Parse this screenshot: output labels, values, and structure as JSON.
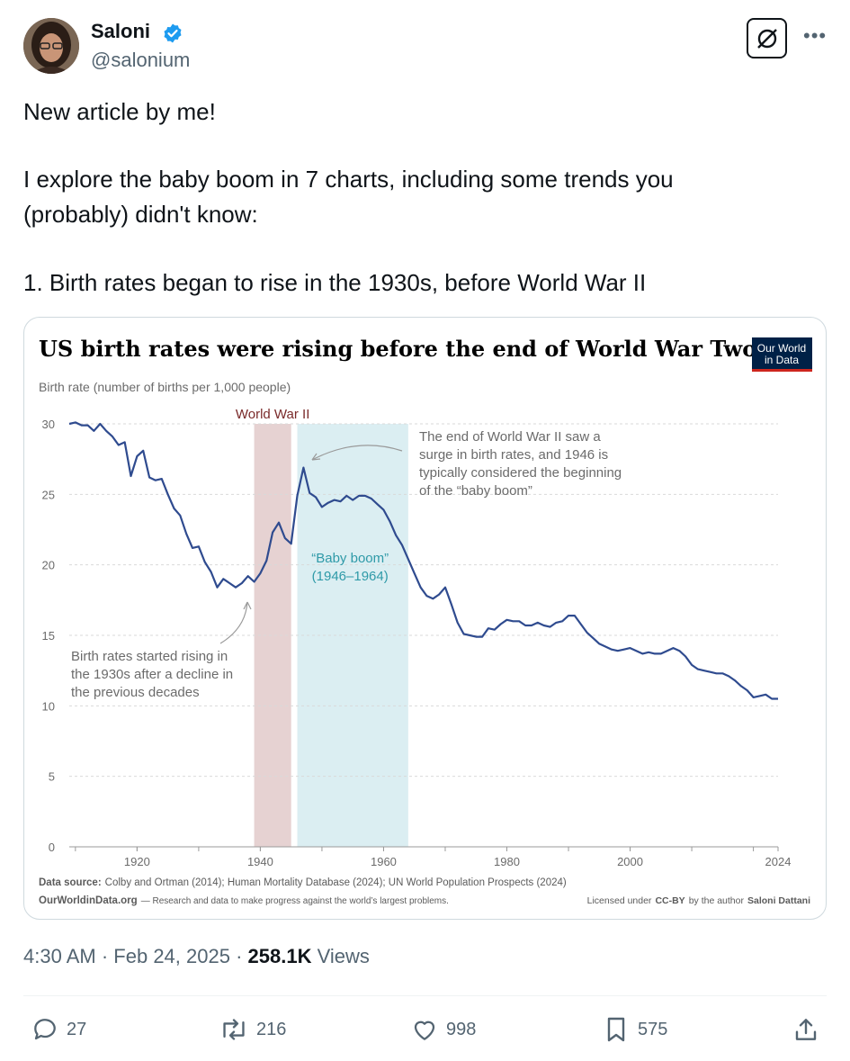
{
  "author": {
    "name": "Saloni",
    "handle": "@salonium",
    "verified": true
  },
  "tweet": {
    "lines": [
      "New article by me!",
      "I explore the baby boom in 7 charts, including some trends you",
      "(probably) didn't know:",
      "1. Birth rates began to rise in the 1930s, before World War II"
    ]
  },
  "meta": {
    "time": "4:30 AM",
    "sep1": "·",
    "date": "Feb 24, 2025",
    "sep2": "·",
    "views": "258.1K",
    "views_label": "Views"
  },
  "actions": {
    "replies": "27",
    "reposts": "216",
    "likes": "998",
    "bookmarks": "575"
  },
  "colors": {
    "line": "#2f4b8f",
    "ww2_band": "#e6d2d2",
    "boom_band": "#dbeef2",
    "owid_red": "#ce261e",
    "owid_navy": "#002147"
  },
  "chart_data": {
    "type": "line",
    "title": "US birth rates were rising before the end of World War Two",
    "ylabel": "Birth rate (number of births per 1,000 people)",
    "logo": [
      "Our World",
      "in Data"
    ],
    "xlim": [
      1909,
      2024
    ],
    "ylim": [
      0,
      30
    ],
    "x_ticks": [
      1920,
      1940,
      1960,
      1980,
      2000,
      2024
    ],
    "y_ticks": [
      0,
      5,
      10,
      15,
      20,
      25,
      30
    ],
    "bands": [
      {
        "label": "World War II",
        "start": 1939,
        "end": 1945
      },
      {
        "label": "“Baby boom”",
        "label2": "(1946–1964)",
        "start": 1946,
        "end": 1964
      }
    ],
    "annotations": [
      [
        "The end of World War II saw a",
        "surge in birth rates, and 1946 is",
        "typically considered the beginning",
        "of the “baby boom”"
      ],
      [
        "Birth rates started rising in",
        "the 1930s after a decline in",
        "the previous decades"
      ]
    ],
    "series": [
      {
        "x": [
          1909,
          1910,
          1911,
          1912,
          1913,
          1914,
          1915,
          1916,
          1917,
          1918,
          1919,
          1920,
          1921,
          1922,
          1923,
          1924,
          1925,
          1926,
          1927,
          1928,
          1929,
          1930,
          1931,
          1932,
          1933,
          1934,
          1935,
          1936,
          1937,
          1938,
          1939,
          1940,
          1941,
          1942,
          1943,
          1944,
          1945,
          1946,
          1947,
          1948,
          1949,
          1950,
          1951,
          1952,
          1953,
          1954,
          1955,
          1956,
          1957,
          1958,
          1959,
          1960,
          1961,
          1962,
          1963,
          1964,
          1965,
          1966,
          1967,
          1968,
          1969,
          1970,
          1971,
          1972,
          1973,
          1974,
          1975,
          1976,
          1977,
          1978,
          1979,
          1980,
          1981,
          1982,
          1983,
          1984,
          1985,
          1986,
          1987,
          1988,
          1989,
          1990,
          1991,
          1992,
          1993,
          1994,
          1995,
          1996,
          1997,
          1998,
          1999,
          2000,
          2001,
          2002,
          2003,
          2004,
          2005,
          2006,
          2007,
          2008,
          2009,
          2010,
          2011,
          2012,
          2013,
          2014,
          2015,
          2016,
          2017,
          2018,
          2019,
          2020,
          2021,
          2022,
          2023,
          2024
        ],
        "values": [
          30,
          30.1,
          29.9,
          29.9,
          29.5,
          30,
          29.5,
          29.1,
          28.5,
          28.7,
          26.3,
          27.7,
          28.1,
          26.2,
          26,
          26.1,
          25,
          24,
          23.5,
          22.2,
          21.2,
          21.3,
          20.2,
          19.5,
          18.4,
          19,
          18.7,
          18.4,
          18.7,
          19.2,
          18.8,
          19.4,
          20.3,
          22.3,
          23,
          21.9,
          21.5,
          24.9,
          26.9,
          25.1,
          24.8,
          24.1,
          24.4,
          24.6,
          24.5,
          24.9,
          24.6,
          24.9,
          24.9,
          24.7,
          24.3,
          23.9,
          23.1,
          22.1,
          21.4,
          20.4,
          19.4,
          18.4,
          17.8,
          17.6,
          17.9,
          18.4,
          17.2,
          15.9,
          15.1,
          15,
          14.9,
          14.9,
          15.5,
          15.4,
          15.8,
          16.1,
          16,
          16,
          15.7,
          15.7,
          15.9,
          15.7,
          15.6,
          15.9,
          16,
          16.4,
          16.4,
          15.8,
          15.2,
          14.8,
          14.4,
          14.2,
          14,
          13.9,
          14,
          14.1,
          13.9,
          13.7,
          13.8,
          13.7,
          13.7,
          13.9,
          14.1,
          13.9,
          13.5,
          12.9,
          12.6,
          12.5,
          12.4,
          12.3,
          12.3,
          12.1,
          11.8,
          11.4,
          11.1,
          10.6,
          10.7,
          10.8,
          10.5,
          10.5
        ]
      }
    ],
    "source": {
      "label": "Data source:",
      "text": "Colby and Ortman (2014); Human Mortality Database (2024); UN World Population Prospects (2024)"
    },
    "footer": {
      "site": "OurWorldinData.org",
      "tagline": "— Research and data to make progress against the world’s largest problems.",
      "license_prefix": "Licensed under",
      "license": "CC-BY",
      "license_mid": "by the author",
      "author": "Saloni Dattani"
    }
  }
}
